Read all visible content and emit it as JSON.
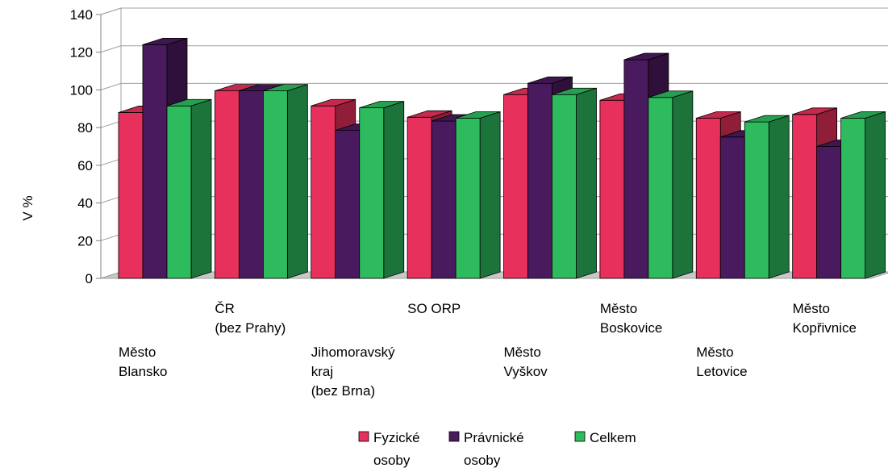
{
  "chart_data": {
    "type": "bar",
    "title": "",
    "ylabel": "V %",
    "xlabel": "",
    "ylim": [
      0,
      140
    ],
    "yticks": [
      0,
      20,
      40,
      60,
      80,
      100,
      120,
      140
    ],
    "grid": true,
    "legend_position": "bottom",
    "categories": [
      "Město Blansko",
      "ČR (bez Prahy)",
      "Jihomoravský kraj (bez Brna)",
      "SO ORP",
      "Město Vyškov",
      "Město Boskovice",
      "Město Letovice",
      "Město Kopřivnice"
    ],
    "category_label_lines": [
      [
        "Město",
        "Blansko"
      ],
      [
        "ČR",
        "(bez Prahy)"
      ],
      [
        "Jihomoravský",
        "kraj",
        "(bez Brna)"
      ],
      [
        "SO ORP"
      ],
      [
        "Město",
        "Vyškov"
      ],
      [
        "Město",
        "Boskovice"
      ],
      [
        "Město",
        "Letovice"
      ],
      [
        "Město",
        "Kopřivnice"
      ]
    ],
    "series": [
      {
        "name": "Fyzické osoby",
        "name_lines": [
          "Fyzické",
          "osoby"
        ],
        "color": "#e8305c",
        "values": [
          88,
          99.5,
          91.5,
          85.5,
          97.5,
          94.5,
          85,
          87
        ]
      },
      {
        "name": "Právnické osoby",
        "name_lines": [
          "Právnické",
          "osoby"
        ],
        "color": "#4a1a5e",
        "values": [
          124,
          99.5,
          78.5,
          83.5,
          103.5,
          116,
          75,
          70
        ]
      },
      {
        "name": "Celkem",
        "name_lines": [
          "Celkem"
        ],
        "color": "#2dbb5e",
        "values": [
          91.5,
          99.5,
          90.5,
          85,
          97.5,
          96,
          83,
          85
        ]
      }
    ]
  }
}
